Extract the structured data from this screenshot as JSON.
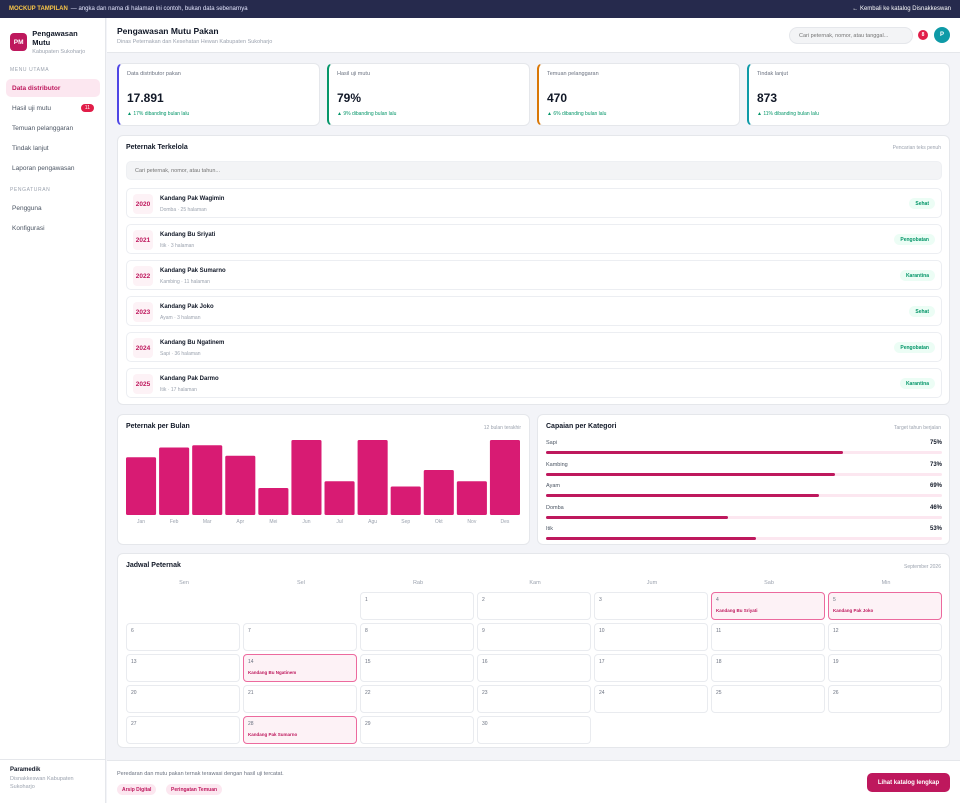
{
  "banner": {
    "tag": "MOCKUP TAMPILAN",
    "note": "— angka dan nama di halaman ini contoh, bukan data sebenarnya",
    "back_link": "← Kembali ke katalog Disnakkeswan"
  },
  "brand": {
    "initials": "PM",
    "title": "Pengawasan Mutu",
    "subtitle": "Kabupaten Sukoharjo"
  },
  "sidebar": {
    "section_main": "MENU UTAMA",
    "section_settings": "PENGATURAN",
    "items": [
      {
        "label": "Data distributor",
        "active": true
      },
      {
        "label": "Hasil uji mutu",
        "badge": "11"
      },
      {
        "label": "Temuan pelanggaran"
      },
      {
        "label": "Tindak lanjut"
      },
      {
        "label": "Laporan pengawasan"
      }
    ],
    "settings": [
      {
        "label": "Pengguna"
      },
      {
        "label": "Konfigurasi"
      }
    ],
    "footer": {
      "name": "Paramedik",
      "org": "Disnakkeswan Kabupaten Sukoharjo"
    }
  },
  "header": {
    "title": "Pengawasan Mutu Pakan",
    "subtitle": "Dinas Peternakan dan Kesehatan Hewan Kabupaten Sukoharjo",
    "search_placeholder": "Cari peternak, nomor, atau tanggal...",
    "notif_count": "8",
    "avatar_initial": "P"
  },
  "stats": [
    {
      "label": "Data distributor pakan",
      "value": "17.891",
      "delta": "▲ 17% dibanding bulan lalu",
      "accent": "#4f46e5"
    },
    {
      "label": "Hasil uji mutu",
      "value": "79%",
      "delta": "▲ 9% dibanding bulan lalu",
      "accent": "#059669"
    },
    {
      "label": "Temuan pelanggaran",
      "value": "470",
      "delta": "▲ 6% dibanding bulan lalu",
      "accent": "#d97706"
    },
    {
      "label": "Tindak lanjut",
      "value": "873",
      "delta": "▲ 11% dibanding bulan lalu",
      "accent": "#0e9aa7"
    }
  ],
  "peternak": {
    "title": "Peternak Terkelola",
    "note": "Pencarian teks penuh",
    "search_placeholder": "Cari peternak, nomor, atau tahun...",
    "rows": [
      {
        "year": "2020",
        "name": "Kandang Pak Wagimin",
        "meta": "Domba · 25 halaman",
        "status": "Sehat"
      },
      {
        "year": "2021",
        "name": "Kandang Bu Sriyati",
        "meta": "Itik · 3 halaman",
        "status": "Pengobatan"
      },
      {
        "year": "2022",
        "name": "Kandang Pak Sumarno",
        "meta": "Kambing · 11 halaman",
        "status": "Karantina"
      },
      {
        "year": "2023",
        "name": "Kandang Pak Joko",
        "meta": "Ayam · 3 halaman",
        "status": "Sehat"
      },
      {
        "year": "2024",
        "name": "Kandang Bu Ngatinem",
        "meta": "Sapi · 36 halaman",
        "status": "Pengobatan"
      },
      {
        "year": "2025",
        "name": "Kandang Pak Darmo",
        "meta": "Itik · 17 halaman",
        "status": "Karantina"
      }
    ]
  },
  "chart_data": {
    "type": "bar",
    "title": "Peternak per Bulan",
    "note": "12 bulan terakhir",
    "categories": [
      "Jan",
      "Feb",
      "Mar",
      "Apr",
      "Mei",
      "Jun",
      "Jul",
      "Agu",
      "Sep",
      "Okt",
      "Nov",
      "Des"
    ],
    "values": [
      77,
      90,
      93,
      79,
      36,
      100,
      45,
      100,
      38,
      60,
      45,
      100
    ],
    "ylim": [
      0,
      100
    ],
    "grid": false,
    "bar_color": "#d81b73"
  },
  "capaian": {
    "title": "Capaian per Kategori",
    "note": "Target tahun berjalan",
    "items": [
      {
        "label": "Sapi",
        "value_text": "75%",
        "value": 0.75
      },
      {
        "label": "Kambing",
        "value_text": "73%",
        "value": 0.73
      },
      {
        "label": "Ayam",
        "value_text": "69%",
        "value": 0.69
      },
      {
        "label": "Domba",
        "value_text": "46%",
        "value": 0.46
      },
      {
        "label": "Itik",
        "value_text": "53%",
        "value": 0.53
      }
    ]
  },
  "calendar": {
    "title": "Jadwal Peternak",
    "month": "September 2026",
    "weekdays": [
      "Sen",
      "Sel",
      "Rab",
      "Kam",
      "Jum",
      "Sab",
      "Min"
    ],
    "first_weekday_index": 2,
    "days_in_month": 30,
    "events": {
      "4": "Kandang Bu Sriyati",
      "5": "Kandang Pak Joko",
      "14": "Kandang Bu Ngatinem",
      "28": "Kandang Pak Sumarno"
    }
  },
  "footer": {
    "message": "Peredaran dan mutu pakan ternak terawasi dengan hasil uji tercatat.",
    "chips": [
      "Arsip Digital",
      "Peringatan Temuan"
    ],
    "cta": "Lihat katalog lengkap"
  }
}
